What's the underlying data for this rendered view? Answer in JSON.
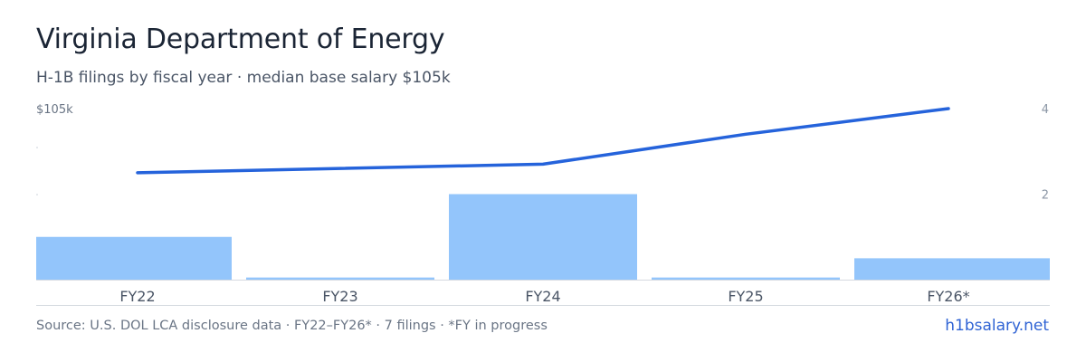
{
  "title": "Virginia Department of Energy",
  "subtitle": "H-1B filings by fiscal year · median base salary $105k",
  "footer": {
    "source": "Source: U.S. DOL LCA disclosure data · FY22–FY26* · 7 filings · *FY in progress",
    "site": "h1bsalary.net"
  },
  "chart_data": {
    "type": "bar",
    "categories": [
      "FY22",
      "FY23",
      "FY24",
      "FY25",
      "FY26*"
    ],
    "series": [
      {
        "type": "bar",
        "axis": "right",
        "values": [
          1,
          0.05,
          2,
          0.05,
          0.5
        ]
      },
      {
        "type": "line",
        "axis": "left",
        "values": [
          2.5,
          2.6,
          2.7,
          3.4,
          4.0
        ]
      }
    ],
    "left_axis": {
      "label": "$105k",
      "label_value": 4
    },
    "right_axis": {
      "ticks": [
        2,
        4
      ],
      "range": [
        0,
        4
      ]
    },
    "colors": {
      "bar": "#93c5fb",
      "line": "#2563db",
      "axis_text": "#8b96a5",
      "baseline": "#d5dae0"
    }
  }
}
